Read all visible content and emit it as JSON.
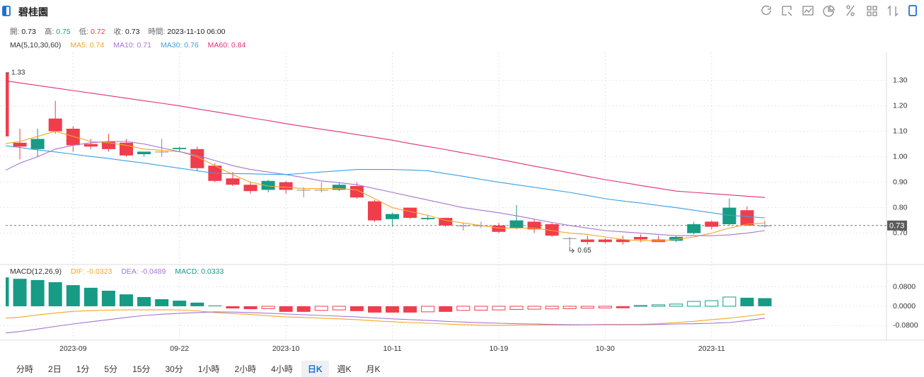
{
  "header": {
    "title": "碧桂園",
    "quote": [
      {
        "label": "開:",
        "value": "0.73"
      },
      {
        "label": "高:",
        "value": "0.75",
        "color": "#1a9a84"
      },
      {
        "label": "低:",
        "value": "0.72",
        "color": "#e8374a"
      },
      {
        "label": "收:",
        "value": "0.73"
      },
      {
        "label": "時間:",
        "value": "2023-11-10 06:00"
      }
    ]
  },
  "chart_data": [
    {
      "type": "candlestick",
      "legend_title": "MA(5,10,30,60)",
      "categories": [
        null,
        null,
        null,
        null,
        "2023-09",
        null,
        null,
        null,
        null,
        null,
        "09-22",
        null,
        null,
        null,
        null,
        null,
        "2023-10",
        null,
        null,
        null,
        null,
        null,
        "10-11",
        null,
        null,
        null,
        null,
        null,
        "10-19",
        null,
        null,
        null,
        null,
        null,
        "10-30",
        null,
        null,
        null,
        null,
        null,
        "2023-11",
        null,
        null,
        null
      ],
      "open": [
        1.33,
        1.055,
        1.03,
        1.15,
        1.11,
        1.05,
        1.06,
        1.055,
        1.01,
        1.02,
        1.03,
        1.03,
        0.965,
        0.915,
        0.89,
        0.87,
        0.9,
        0.87,
        0.87,
        0.87,
        0.885,
        0.825,
        0.755,
        0.8,
        0.755,
        0.76,
        0.73,
        0.73,
        0.73,
        0.72,
        0.745,
        0.735,
        0.68,
        0.675,
        0.675,
        0.675,
        0.685,
        0.675,
        0.67,
        0.7,
        0.745,
        0.735,
        0.79,
        0.73
      ],
      "high": [
        1.33,
        1.11,
        1.11,
        1.22,
        1.12,
        1.07,
        1.09,
        1.07,
        1.02,
        1.07,
        1.04,
        1.04,
        0.975,
        0.94,
        0.9,
        0.91,
        0.905,
        0.88,
        0.9,
        0.9,
        0.9,
        0.83,
        0.78,
        0.8,
        0.77,
        0.76,
        0.74,
        0.745,
        0.74,
        0.81,
        0.755,
        0.74,
        0.685,
        0.69,
        0.68,
        0.69,
        0.695,
        0.69,
        0.69,
        0.745,
        0.75,
        0.835,
        0.805,
        0.75
      ],
      "low": [
        1.08,
        0.99,
        1.0,
        1.09,
        1.02,
        1.03,
        1.02,
        1.0,
        1.0,
        1.0,
        1.02,
        0.945,
        0.9,
        0.885,
        0.855,
        0.86,
        0.855,
        0.84,
        0.86,
        0.865,
        0.835,
        0.745,
        0.725,
        0.755,
        0.75,
        0.725,
        0.71,
        0.72,
        0.7,
        0.715,
        0.7,
        0.685,
        0.65,
        0.655,
        0.66,
        0.655,
        0.665,
        0.665,
        0.665,
        0.695,
        0.715,
        0.73,
        0.73,
        0.72
      ],
      "close": [
        1.08,
        1.04,
        1.07,
        1.1,
        1.045,
        1.04,
        1.03,
        1.005,
        1.02,
        1.02,
        1.035,
        0.955,
        0.905,
        0.89,
        0.865,
        0.905,
        0.87,
        0.87,
        0.87,
        0.89,
        0.84,
        0.75,
        0.775,
        0.76,
        0.76,
        0.73,
        0.73,
        0.73,
        0.705,
        0.75,
        0.715,
        0.69,
        0.68,
        0.665,
        0.665,
        0.665,
        0.675,
        0.665,
        0.685,
        0.735,
        0.725,
        0.8,
        0.73,
        0.73
      ],
      "up_color": "#179b85",
      "down_color": "#f03d4c",
      "flat_color": "#8a8a8a",
      "series": [
        {
          "name": "MA5: 0.74",
          "color": "#f5a623",
          "values": [
            1.05,
            1.06,
            1.08,
            1.1,
            1.08,
            1.06,
            1.055,
            1.045,
            1.03,
            1.025,
            1.02,
            1.0,
            0.965,
            0.93,
            0.9,
            0.885,
            0.88,
            0.875,
            0.875,
            0.875,
            0.87,
            0.835,
            0.8,
            0.785,
            0.77,
            0.75,
            0.74,
            0.73,
            0.72,
            0.72,
            0.72,
            0.71,
            0.7,
            0.695,
            0.685,
            0.675,
            0.67,
            0.67,
            0.675,
            0.685,
            0.7,
            0.72,
            0.735,
            0.74
          ]
        },
        {
          "name": "MA10: 0.71",
          "color": "#a575d1",
          "values": [
            0.94,
            0.975,
            1.0,
            1.03,
            1.045,
            1.055,
            1.06,
            1.06,
            1.05,
            1.035,
            1.02,
            1.005,
            0.985,
            0.965,
            0.95,
            0.94,
            0.93,
            0.918,
            0.905,
            0.898,
            0.89,
            0.875,
            0.86,
            0.845,
            0.83,
            0.815,
            0.8,
            0.79,
            0.78,
            0.768,
            0.755,
            0.742,
            0.73,
            0.72,
            0.71,
            0.705,
            0.7,
            0.695,
            0.69,
            0.69,
            0.69,
            0.693,
            0.7,
            0.71
          ]
        },
        {
          "name": "MA30: 0.76",
          "color": "#3ba0e6",
          "values": [
            1.045,
            1.036,
            1.027,
            1.019,
            1.01,
            1.001,
            0.993,
            0.984,
            0.975,
            0.965,
            0.955,
            0.945,
            0.935,
            0.934,
            0.933,
            0.931,
            0.93,
            0.935,
            0.94,
            0.945,
            0.95,
            0.95,
            0.95,
            0.948,
            0.945,
            0.934,
            0.923,
            0.911,
            0.9,
            0.89,
            0.88,
            0.87,
            0.86,
            0.848,
            0.835,
            0.826,
            0.818,
            0.809,
            0.8,
            0.79,
            0.78,
            0.77,
            0.765,
            0.76
          ]
        },
        {
          "name": "MA60: 0.84",
          "color": "#e0317a",
          "values": [
            1.3,
            1.29,
            1.28,
            1.27,
            1.26,
            1.25,
            1.24,
            1.23,
            1.22,
            1.21,
            1.2,
            1.188,
            1.177,
            1.165,
            1.153,
            1.142,
            1.13,
            1.119,
            1.108,
            1.098,
            1.087,
            1.076,
            1.065,
            1.052,
            1.04,
            1.028,
            1.015,
            1.003,
            0.99,
            0.977,
            0.963,
            0.95,
            0.937,
            0.923,
            0.91,
            0.899,
            0.887,
            0.876,
            0.865,
            0.86,
            0.855,
            0.85,
            0.845,
            0.84
          ]
        }
      ],
      "ylim": [
        0.585,
        1.41
      ],
      "yticks": [
        {
          "value": 0.7,
          "label": "0.70"
        },
        {
          "value": 0.8,
          "label": "0.80"
        },
        {
          "value": 0.9,
          "label": "0.90"
        },
        {
          "value": 1.0,
          "label": "1.00"
        },
        {
          "value": 1.1,
          "label": "1.10"
        },
        {
          "value": 1.2,
          "label": "1.20"
        },
        {
          "value": 1.3,
          "label": "1.30"
        }
      ],
      "grid": true,
      "high_label": "1.33",
      "low_label": "0.65",
      "last_price": {
        "value": 0.73,
        "label": "0.73"
      }
    },
    {
      "type": "macd",
      "legend_title": "MACD(12,26,9)",
      "series": [
        {
          "name": "DIF: -0.0323",
          "color": "#f5a623",
          "values": [
            -0.05,
            -0.045,
            -0.036,
            -0.028,
            -0.021,
            -0.018,
            -0.016,
            -0.015,
            -0.015,
            -0.015,
            -0.015,
            -0.019,
            -0.026,
            -0.03,
            -0.034,
            -0.039,
            -0.044,
            -0.046,
            -0.049,
            -0.052,
            -0.055,
            -0.06,
            -0.064,
            -0.067,
            -0.07,
            -0.073,
            -0.076,
            -0.078,
            -0.079,
            -0.078,
            -0.077,
            -0.077,
            -0.077,
            -0.076,
            -0.075,
            -0.075,
            -0.075,
            -0.072,
            -0.067,
            -0.062,
            -0.055,
            -0.049,
            -0.041,
            -0.0323
          ]
        },
        {
          "name": "DEA: -0.0489",
          "color": "#a575d1",
          "values": [
            -0.112,
            -0.104,
            -0.094,
            -0.083,
            -0.073,
            -0.064,
            -0.055,
            -0.046,
            -0.038,
            -0.033,
            -0.029,
            -0.026,
            -0.023,
            -0.024,
            -0.026,
            -0.029,
            -0.032,
            -0.035,
            -0.038,
            -0.041,
            -0.044,
            -0.048,
            -0.052,
            -0.055,
            -0.058,
            -0.062,
            -0.065,
            -0.068,
            -0.07,
            -0.072,
            -0.073,
            -0.075,
            -0.076,
            -0.076,
            -0.076,
            -0.076,
            -0.076,
            -0.075,
            -0.073,
            -0.072,
            -0.07,
            -0.067,
            -0.059,
            -0.0489
          ]
        },
        {
          "name": "MACD: 0.0333",
          "type": "bar",
          "color": "#179b85",
          "negative_color": "#f03d4c",
          "values": [
            0.119,
            0.113,
            0.108,
            0.099,
            0.087,
            0.076,
            0.064,
            0.049,
            0.038,
            0.029,
            0.023,
            0.015,
            0.003,
            -0.009,
            -0.012,
            -0.01,
            -0.023,
            -0.023,
            -0.017,
            -0.015,
            -0.02,
            -0.026,
            -0.026,
            -0.026,
            -0.023,
            -0.023,
            -0.017,
            -0.016,
            -0.015,
            -0.013,
            -0.012,
            -0.011,
            -0.01,
            -0.008,
            -0.007,
            -0.008,
            0.003,
            0.006,
            0.009,
            0.02,
            0.023,
            0.038,
            0.035,
            0.0333
          ]
        }
      ],
      "ylim": [
        -0.137,
        0.166
      ],
      "yticks": [
        {
          "value": 0.08,
          "label": "0.0800"
        },
        {
          "value": 0,
          "label": "0.0000"
        },
        {
          "value": -0.08,
          "label": "-0.0800"
        }
      ],
      "grid": true
    }
  ],
  "periods": [
    "分時",
    "2日",
    "1分",
    "5分",
    "15分",
    "30分",
    "1小時",
    "2小時",
    "4小時",
    "日K",
    "週K",
    "月K"
  ],
  "selected_period": 9
}
